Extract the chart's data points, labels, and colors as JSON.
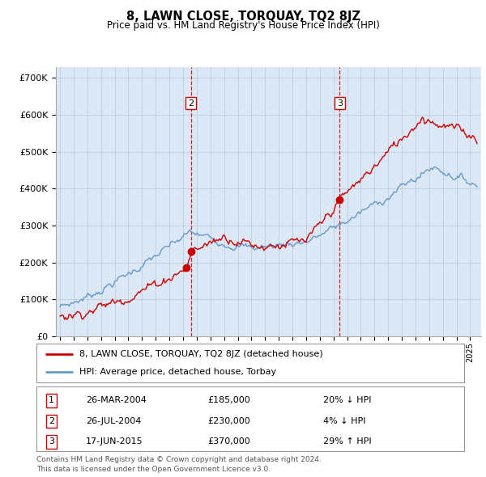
{
  "title": "8, LAWN CLOSE, TORQUAY, TQ2 8JZ",
  "subtitle": "Price paid vs. HM Land Registry's House Price Index (HPI)",
  "footer1": "Contains HM Land Registry data © Crown copyright and database right 2024.",
  "footer2": "This data is licensed under the Open Government Licence v3.0.",
  "legend_line1": "8, LAWN CLOSE, TORQUAY, TQ2 8JZ (detached house)",
  "legend_line2": "HPI: Average price, detached house, Torbay",
  "ylim": [
    0,
    730000
  ],
  "yticks": [
    0,
    100000,
    200000,
    300000,
    400000,
    500000,
    600000,
    700000
  ],
  "ytick_labels": [
    "£0",
    "£100K",
    "£200K",
    "£300K",
    "£400K",
    "£500K",
    "£600K",
    "£700K"
  ],
  "bg_color": "#dce8f5",
  "plot_bg": "#ffffff",
  "grid_color": "#b8cfe0",
  "red_color": "#cc0000",
  "blue_color": "#6699cc",
  "dashed_color": "#cc0000",
  "xlim_left": 1994.7,
  "xlim_right": 2025.8
}
